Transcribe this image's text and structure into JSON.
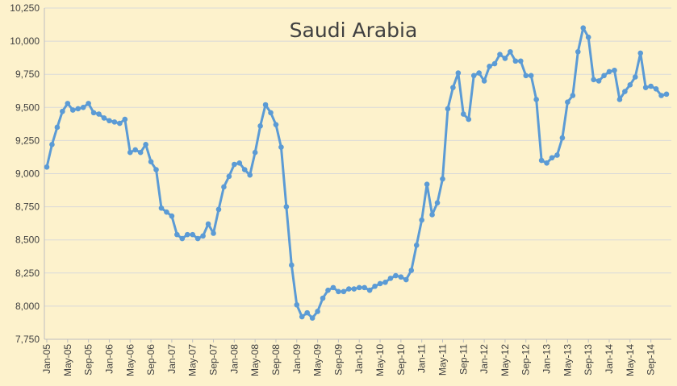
{
  "chart_data": {
    "type": "line",
    "title": "Saudi Arabia",
    "xlabel": "",
    "ylabel": "",
    "ylim": [
      7750,
      10250
    ],
    "y_ticks": [
      "7,750",
      "8,000",
      "8,250",
      "8,500",
      "8,750",
      "9,000",
      "9,250",
      "9,500",
      "9,750",
      "10,000",
      "10,250"
    ],
    "x_tick_labels": [
      "Jan-05",
      "May-05",
      "Sep-05",
      "Jan-06",
      "May-06",
      "Sep-06",
      "Jan-07",
      "May-07",
      "Sep-07",
      "Jan-08",
      "May-08",
      "Sep-08",
      "Jan-09",
      "May-09",
      "Sep-09",
      "Jan-10",
      "May-10",
      "Sep-10",
      "Jan-11",
      "May-11",
      "Sep-11",
      "Jan-12",
      "May-12",
      "Sep-12",
      "Jan-13",
      "May-13",
      "Sep-13",
      "Jan-14",
      "May-14",
      "Sep-14"
    ],
    "grid": "horizontal",
    "legend": "none",
    "series_color": "#5b9bd5",
    "grid_color": "#d9d9d9",
    "x": [
      "Jan-05",
      "Feb-05",
      "Mar-05",
      "Apr-05",
      "May-05",
      "Jun-05",
      "Jul-05",
      "Aug-05",
      "Sep-05",
      "Oct-05",
      "Nov-05",
      "Dec-05",
      "Jan-06",
      "Feb-06",
      "Mar-06",
      "Apr-06",
      "May-06",
      "Jun-06",
      "Jul-06",
      "Aug-06",
      "Sep-06",
      "Oct-06",
      "Nov-06",
      "Dec-06",
      "Jan-07",
      "Feb-07",
      "Mar-07",
      "Apr-07",
      "May-07",
      "Jun-07",
      "Jul-07",
      "Aug-07",
      "Sep-07",
      "Oct-07",
      "Nov-07",
      "Dec-07",
      "Jan-08",
      "Feb-08",
      "Mar-08",
      "Apr-08",
      "May-08",
      "Jun-08",
      "Jul-08",
      "Aug-08",
      "Sep-08",
      "Oct-08",
      "Nov-08",
      "Dec-08",
      "Jan-09",
      "Feb-09",
      "Mar-09",
      "Apr-09",
      "May-09",
      "Jun-09",
      "Jul-09",
      "Aug-09",
      "Sep-09",
      "Oct-09",
      "Nov-09",
      "Dec-09",
      "Jan-10",
      "Feb-10",
      "Mar-10",
      "Apr-10",
      "May-10",
      "Jun-10",
      "Jul-10",
      "Aug-10",
      "Sep-10",
      "Oct-10",
      "Nov-10",
      "Dec-10",
      "Jan-11",
      "Feb-11",
      "Mar-11",
      "Apr-11",
      "May-11",
      "Jun-11",
      "Jul-11",
      "Aug-11",
      "Sep-11",
      "Oct-11",
      "Nov-11",
      "Dec-11",
      "Jan-12",
      "Feb-12",
      "Mar-12",
      "Apr-12",
      "May-12",
      "Jun-12",
      "Jul-12",
      "Aug-12",
      "Sep-12",
      "Oct-12",
      "Nov-12",
      "Dec-12",
      "Jan-13",
      "Feb-13",
      "Mar-13",
      "Apr-13",
      "May-13",
      "Jun-13",
      "Jul-13",
      "Aug-13",
      "Sep-13",
      "Oct-13",
      "Nov-13",
      "Dec-13",
      "Jan-14",
      "Feb-14",
      "Mar-14",
      "Apr-14",
      "May-14",
      "Jun-14",
      "Jul-14",
      "Aug-14",
      "Sep-14",
      "Oct-14",
      "Nov-14",
      "Dec-14"
    ],
    "values": [
      9050,
      9220,
      9350,
      9470,
      9530,
      9480,
      9490,
      9500,
      9530,
      9460,
      9450,
      9420,
      9400,
      9390,
      9380,
      9410,
      9160,
      9180,
      9160,
      9220,
      9090,
      9030,
      8740,
      8710,
      8680,
      8540,
      8510,
      8540,
      8540,
      8510,
      8530,
      8620,
      8550,
      8730,
      8900,
      8980,
      9070,
      9080,
      9030,
      8990,
      9160,
      9360,
      9520,
      9460,
      9370,
      9200,
      8750,
      8310,
      8010,
      7920,
      7950,
      7910,
      7960,
      8060,
      8120,
      8140,
      8110,
      8110,
      8130,
      8130,
      8140,
      8140,
      8120,
      8150,
      8170,
      8180,
      8210,
      8230,
      8220,
      8200,
      8270,
      8460,
      8650,
      8920,
      8690,
      8780,
      8960,
      9490,
      9650,
      9760,
      9450,
      9410,
      9740,
      9760,
      9700,
      9810,
      9830,
      9900,
      9870,
      9920,
      9850,
      9850,
      9740,
      9740,
      9560,
      9100,
      9080,
      9120,
      9140,
      9270,
      9540,
      9590,
      9920,
      10100,
      10030,
      9710,
      9700,
      9740,
      9770,
      9780,
      9560,
      9620,
      9670,
      9730,
      9910,
      9650,
      9660,
      9640,
      9590,
      9600
    ]
  }
}
